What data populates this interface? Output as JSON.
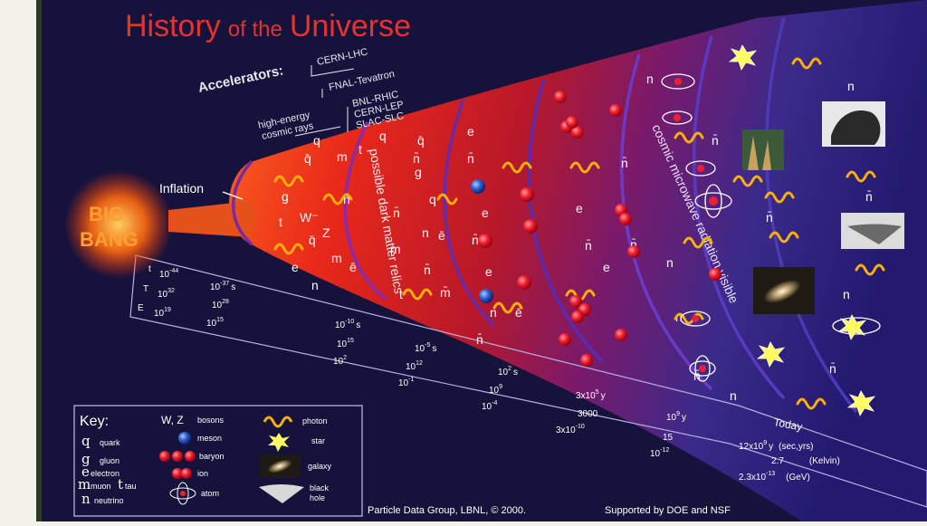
{
  "title": {
    "part1": "History",
    "part2": "of the",
    "part3": "Universe"
  },
  "accelerators": {
    "label": "Accelerators:",
    "cern_lhc": "CERN-LHC",
    "fnal": "FNAL-Tevatron",
    "bnl": "BNL-RHIC",
    "cern_lep": "CERN-LEP",
    "slac": "SLAC-SLC",
    "cosmic1": "high-energy",
    "cosmic2": "cosmic rays"
  },
  "inflation": "Inflation",
  "big_bang": {
    "line1": "BIG",
    "line2": "BANG"
  },
  "arc_labels": {
    "dark_matter": "possible dark matter relics",
    "cmb": "cosmic microwave radiation visible"
  },
  "scale_rows": {
    "t": "t",
    "T": "T",
    "E": "E"
  },
  "scale": {
    "c1": {
      "t": "10",
      "t_exp": "-44",
      "T": "10",
      "T_exp": "32",
      "E": "10",
      "E_exp": "19"
    },
    "c2": {
      "t": "10",
      "t_exp": "-37",
      "t_unit": "s",
      "T": "10",
      "T_exp": "28",
      "E": "10",
      "E_exp": "15"
    },
    "c3": {
      "t": "10",
      "t_exp": "-10",
      "t_unit": "s",
      "T": "10",
      "T_exp": "15",
      "E": "10",
      "E_exp": "2"
    },
    "c4": {
      "t": "10",
      "t_exp": "-5",
      "t_unit": "s",
      "T": "10",
      "T_exp": "12",
      "E": "10",
      "E_exp": "-1"
    },
    "c5": {
      "t": "10",
      "t_exp": "2",
      "t_unit": "s",
      "T": "10",
      "T_exp": "9",
      "E": "10",
      "E_exp": "-4"
    },
    "c6": {
      "t": "3x10",
      "t_exp": "5",
      "t_unit": "y",
      "T": "3000",
      "E": "3x10",
      "E_exp": "-10"
    },
    "c7": {
      "t": "10",
      "t_exp": "9",
      "t_unit": "y",
      "T": "15",
      "E": "10",
      "E_exp": "-12"
    },
    "today": {
      "label": "Today",
      "t": "12x10",
      "t_exp": "9",
      "t_unit": "y",
      "t_note": "(sec,yrs)",
      "T": "2.7",
      "T_note": "(Kelvin)",
      "E": "2.3x10",
      "E_exp": "-13",
      "E_note": "(GeV)"
    }
  },
  "key": {
    "title": "Key:",
    "quark_sym": "q",
    "quark": "quark",
    "gluon_sym": "g",
    "gluon": "gluon",
    "electron_sym": "e",
    "electron": "electron",
    "muon_sym": "m",
    "muon": "muon",
    "tau_sym": "t",
    "tau": "tau",
    "neutrino_sym": "n",
    "neutrino": "neutrino",
    "bosons_sym": "W, Z",
    "bosons": "bosons",
    "meson": "meson",
    "baryon": "baryon",
    "ion": "ion",
    "atom": "atom",
    "photon": "photon",
    "star": "star",
    "galaxy": "galaxy",
    "black_hole_1": "black",
    "black_hole_2": "hole"
  },
  "credit": "Particle Data Group, LBNL, © 2000.",
  "support": "Supported by DOE and NSF",
  "particles": {
    "q": "q",
    "qbar": "q̄",
    "g": "g",
    "m": "m",
    "mbar": "m̄",
    "t": "t",
    "tbar": "t̄",
    "e": "e",
    "ebar": "ē",
    "n": "n",
    "nbar": "n̄",
    "W": "W",
    "Wminus": "W⁻",
    "Z": "Z"
  },
  "colors": {
    "background": "#15123c",
    "title": "#e8322a",
    "hot": "#d83018",
    "cool": "#3a2a8a",
    "photon": "#ffb000",
    "arc": "#7a3ab8"
  }
}
